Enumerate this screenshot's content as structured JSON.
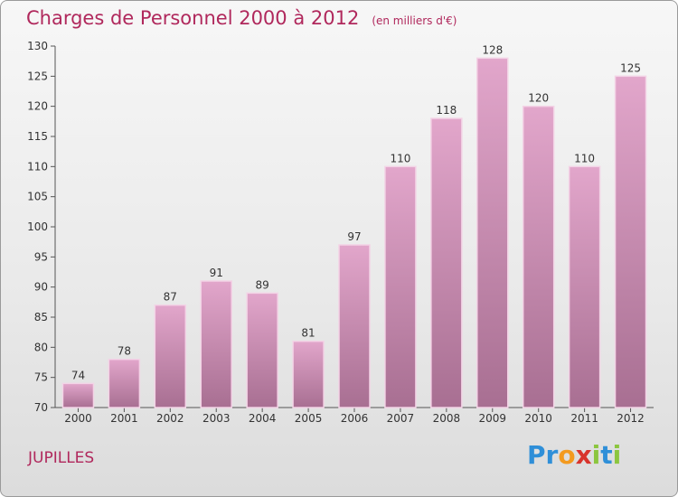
{
  "header": {
    "title": "Charges de Personnel 2000 à 2012",
    "subtitle": "(en milliers d'€)"
  },
  "footer": {
    "location": "JUPILLES",
    "logo_letters": [
      {
        "char": "P",
        "color": "#2f8fd8"
      },
      {
        "char": "r",
        "color": "#2f8fd8"
      },
      {
        "char": "o",
        "color": "#f39a1f"
      },
      {
        "char": "x",
        "color": "#d8342c"
      },
      {
        "char": "i",
        "color": "#8cc63f"
      },
      {
        "char": "t",
        "color": "#2f8fd8"
      },
      {
        "char": "i",
        "color": "#8cc63f"
      }
    ]
  },
  "colors": {
    "accent": "#b0285c",
    "bar_top": "#e2a6cb",
    "bar_bottom": "#a86f92",
    "bar_edge": "#f3d3e6"
  },
  "chart_data": {
    "type": "bar",
    "categories": [
      "2000",
      "2001",
      "2002",
      "2003",
      "2004",
      "2005",
      "2006",
      "2007",
      "2008",
      "2009",
      "2010",
      "2011",
      "2012"
    ],
    "values": [
      74,
      78,
      87,
      91,
      89,
      81,
      97,
      110,
      118,
      128,
      120,
      110,
      125
    ],
    "ylim": [
      70,
      130
    ],
    "yticks": [
      70,
      75,
      80,
      85,
      90,
      95,
      100,
      105,
      110,
      115,
      120,
      125,
      130
    ],
    "grid": false,
    "xlabel": "",
    "ylabel": ""
  }
}
